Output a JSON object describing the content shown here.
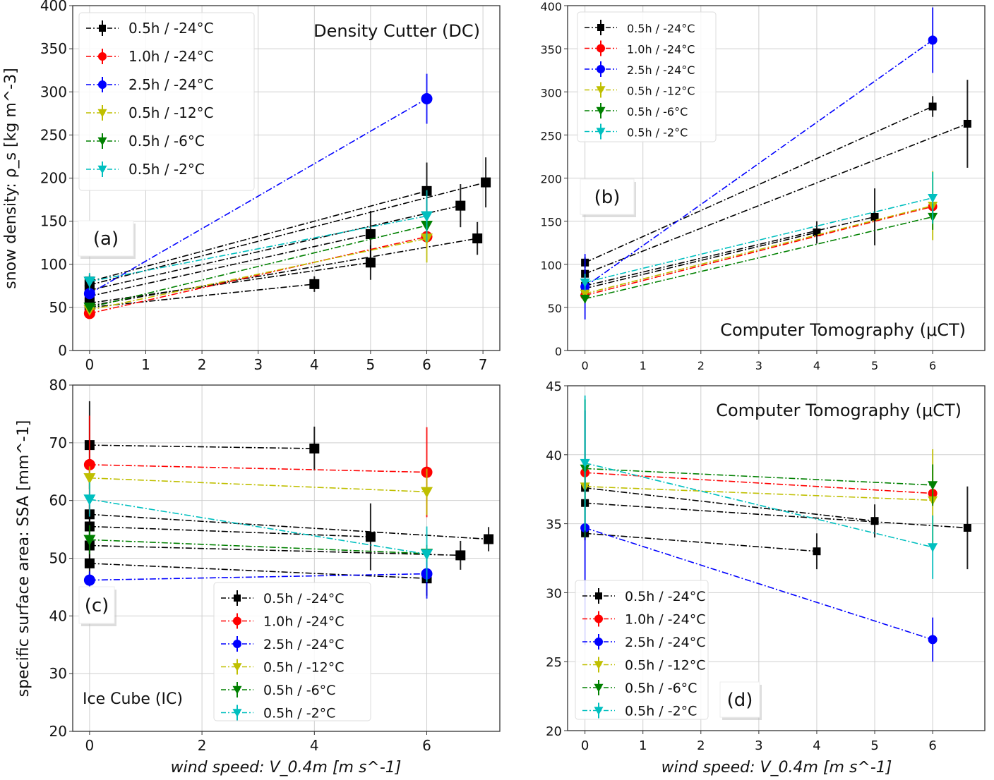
{
  "series_styles": [
    {
      "key": "k24_05",
      "label": "0.5h / -24°C",
      "color": "#000000",
      "marker": "square"
    },
    {
      "key": "r24_10",
      "label": "1.0h / -24°C",
      "color": "#ff0000",
      "marker": "circle"
    },
    {
      "key": "b24_25",
      "label": "2.5h / -24°C",
      "color": "#0000ff",
      "marker": "circle"
    },
    {
      "key": "y12_05",
      "label": "0.5h / -12°C",
      "color": "#bfbf00",
      "marker": "triangle-down"
    },
    {
      "key": "g6_05",
      "label": "0.5h /   -6°C",
      "color": "#008000",
      "marker": "triangle-down"
    },
    {
      "key": "c2_05",
      "label": "0.5h /   -2°C",
      "color": "#00bfbf",
      "marker": "triangle-down"
    }
  ],
  "chart_data": [
    {
      "id": "a",
      "type": "line",
      "panel_label": "(a)",
      "annotation": "Density Cutter (DC)",
      "ylabel": "snow density: ρ_s [kg m^-3]",
      "xlabel": "",
      "xlim": [
        -0.3,
        7.3
      ],
      "ylim": [
        0,
        400
      ],
      "xticks": [
        0,
        1,
        2,
        3,
        4,
        5,
        6,
        7
      ],
      "yticks": [
        0,
        50,
        100,
        150,
        200,
        250,
        300,
        350,
        400
      ],
      "grid": true,
      "legend": "top-left",
      "series": [
        {
          "style": "k24_05",
          "x": [
            0,
            6
          ],
          "y": [
            80,
            185
          ],
          "err": [
            8,
            33
          ]
        },
        {
          "style": "k24_05",
          "x": [
            0,
            7.05
          ],
          "y": [
            76,
            195
          ],
          "err": [
            8,
            29
          ]
        },
        {
          "style": "k24_05",
          "x": [
            0,
            6.6
          ],
          "y": [
            70,
            168
          ],
          "err": [
            8,
            25
          ]
        },
        {
          "style": "k24_05",
          "x": [
            0,
            5
          ],
          "y": [
            63,
            135
          ],
          "err": [
            8,
            27
          ]
        },
        {
          "style": "k24_05",
          "x": [
            0,
            5
          ],
          "y": [
            55,
            102
          ],
          "err": [
            6,
            20
          ]
        },
        {
          "style": "k24_05",
          "x": [
            0,
            6.9
          ],
          "y": [
            52,
            130
          ],
          "err": [
            5,
            19
          ]
        },
        {
          "style": "k24_05",
          "x": [
            0,
            4
          ],
          "y": [
            50,
            77
          ],
          "err": [
            4,
            9
          ]
        },
        {
          "style": "r24_10",
          "x": [
            0,
            6
          ],
          "y": [
            43,
            132
          ],
          "err": [
            4,
            12
          ]
        },
        {
          "style": "b24_25",
          "x": [
            0,
            6
          ],
          "y": [
            66,
            292
          ],
          "err": [
            6,
            29
          ]
        },
        {
          "style": "y12_05",
          "x": [
            0,
            6
          ],
          "y": [
            47,
            130
          ],
          "err": [
            4,
            28
          ]
        },
        {
          "style": "g6_05",
          "x": [
            0,
            6
          ],
          "y": [
            50,
            145
          ],
          "err": [
            4,
            8
          ]
        },
        {
          "style": "c2_05",
          "x": [
            0,
            6
          ],
          "y": [
            80,
            156
          ],
          "err": [
            10,
            30
          ]
        }
      ]
    },
    {
      "id": "b",
      "type": "line",
      "panel_label": "(b)",
      "annotation": "Computer Tomography (μCT)",
      "ylabel": "",
      "xlabel": "",
      "xlim": [
        -0.3,
        6.9
      ],
      "ylim": [
        0,
        400
      ],
      "xticks": [
        0,
        1,
        2,
        3,
        4,
        5,
        6
      ],
      "yticks": [
        0,
        50,
        100,
        150,
        200,
        250,
        300,
        350,
        400
      ],
      "grid": true,
      "legend": "top-left",
      "series": [
        {
          "style": "k24_05",
          "x": [
            0,
            6
          ],
          "y": [
            102,
            283
          ],
          "err": [
            6,
            12
          ]
        },
        {
          "style": "k24_05",
          "x": [
            0,
            6.6
          ],
          "y": [
            89,
            263
          ],
          "err": [
            5,
            51
          ]
        },
        {
          "style": "k24_05",
          "x": [
            0,
            4
          ],
          "y": [
            72,
            137
          ],
          "err": [
            4,
            13
          ]
        },
        {
          "style": "k24_05",
          "x": [
            0,
            5
          ],
          "y": [
            75,
            155
          ],
          "err": [
            4,
            33
          ]
        },
        {
          "style": "r24_10",
          "x": [
            0,
            6
          ],
          "y": [
            64,
            167
          ],
          "err": [
            4,
            8
          ]
        },
        {
          "style": "b24_25",
          "x": [
            0,
            6
          ],
          "y": [
            74,
            360
          ],
          "err": [
            38,
            38
          ]
        },
        {
          "style": "y12_05",
          "x": [
            0,
            6
          ],
          "y": [
            66,
            168
          ],
          "err": [
            4,
            40
          ]
        },
        {
          "style": "g6_05",
          "x": [
            0,
            6
          ],
          "y": [
            60,
            155
          ],
          "err": [
            5,
            15
          ]
        },
        {
          "style": "c2_05",
          "x": [
            0,
            6
          ],
          "y": [
            79,
            177
          ],
          "err": [
            10,
            30
          ]
        }
      ]
    },
    {
      "id": "c",
      "type": "line",
      "panel_label": "(c)",
      "annotation": "Ice Cube (IC)",
      "ylabel": "specific surface area: SSA [mm^-1]",
      "xlabel": "wind speed: V_0.4m [m s^-1]",
      "xlim": [
        -0.3,
        7.3
      ],
      "ylim": [
        20,
        80
      ],
      "xticks": [
        0,
        2,
        4,
        6
      ],
      "yticks": [
        20,
        30,
        40,
        50,
        60,
        70,
        80
      ],
      "grid": true,
      "legend": "lower-center",
      "series": [
        {
          "style": "k24_05",
          "x": [
            0,
            4
          ],
          "y": [
            69.6,
            69.0
          ],
          "err": [
            7.6,
            3.8
          ]
        },
        {
          "style": "k24_05",
          "x": [
            0,
            7.1
          ],
          "y": [
            57.6,
            53.3
          ],
          "err": [
            3,
            2.1
          ]
        },
        {
          "style": "k24_05",
          "x": [
            0,
            5
          ],
          "y": [
            55.5,
            53.7
          ],
          "err": [
            3,
            5.8
          ]
        },
        {
          "style": "k24_05",
          "x": [
            0,
            6.6
          ],
          "y": [
            52.2,
            50.5
          ],
          "err": [
            3,
            2.5
          ]
        },
        {
          "style": "k24_05",
          "x": [
            0,
            6
          ],
          "y": [
            49.1,
            46.5
          ],
          "err": [
            3,
            3
          ]
        },
        {
          "style": "r24_10",
          "x": [
            0,
            6
          ],
          "y": [
            66.2,
            64.9
          ],
          "err": [
            8.5,
            7.8
          ]
        },
        {
          "style": "b24_25",
          "x": [
            0,
            6
          ],
          "y": [
            46.2,
            47.3
          ],
          "err": [
            1.5,
            4.3
          ]
        },
        {
          "style": "y12_05",
          "x": [
            0,
            6
          ],
          "y": [
            63.9,
            61.5
          ],
          "err": [
            2,
            4
          ]
        },
        {
          "style": "g6_05",
          "x": [
            0,
            6
          ],
          "y": [
            53.2,
            50.8
          ],
          "err": [
            2.5,
            1.5
          ]
        },
        {
          "style": "c2_05",
          "x": [
            0,
            6
          ],
          "y": [
            60.2,
            50.7
          ],
          "err": [
            3,
            4.8
          ]
        }
      ]
    },
    {
      "id": "d",
      "type": "line",
      "panel_label": "(d)",
      "annotation": "Computer Tomography (μCT)",
      "ylabel": "",
      "xlabel": "wind speed: V_0.4m [m s^-1]",
      "xlim": [
        -0.3,
        6.9
      ],
      "ylim": [
        20,
        45
      ],
      "xticks": [
        0,
        1,
        2,
        3,
        4,
        5,
        6
      ],
      "yticks": [
        20,
        25,
        30,
        35,
        40,
        45
      ],
      "grid": true,
      "legend": "lower-left",
      "series": [
        {
          "style": "k24_05",
          "x": [
            0,
            5
          ],
          "y": [
            37.6,
            35.2
          ],
          "err": [
            0.5,
            1.2
          ]
        },
        {
          "style": "k24_05",
          "x": [
            0,
            6.6
          ],
          "y": [
            36.5,
            34.7
          ],
          "err": [
            0.5,
            3
          ]
        },
        {
          "style": "k24_05",
          "x": [
            0,
            4
          ],
          "y": [
            34.3,
            33.0
          ],
          "err": [
            0.5,
            1.3
          ]
        },
        {
          "style": "r24_10",
          "x": [
            0,
            6
          ],
          "y": [
            38.7,
            37.2
          ],
          "err": [
            1,
            0.5
          ]
        },
        {
          "style": "b24_25",
          "x": [
            0,
            6
          ],
          "y": [
            34.7,
            26.6
          ],
          "err": [
            8.5,
            1.6
          ]
        },
        {
          "style": "y12_05",
          "x": [
            0,
            6
          ],
          "y": [
            37.7,
            36.7
          ],
          "err": [
            1,
            3.7
          ]
        },
        {
          "style": "g6_05",
          "x": [
            0,
            6
          ],
          "y": [
            39.0,
            37.8
          ],
          "err": [
            5,
            1.5
          ]
        },
        {
          "style": "c2_05",
          "x": [
            0,
            6
          ],
          "y": [
            39.4,
            33.3
          ],
          "err": [
            4.9,
            2.3
          ]
        }
      ]
    }
  ]
}
